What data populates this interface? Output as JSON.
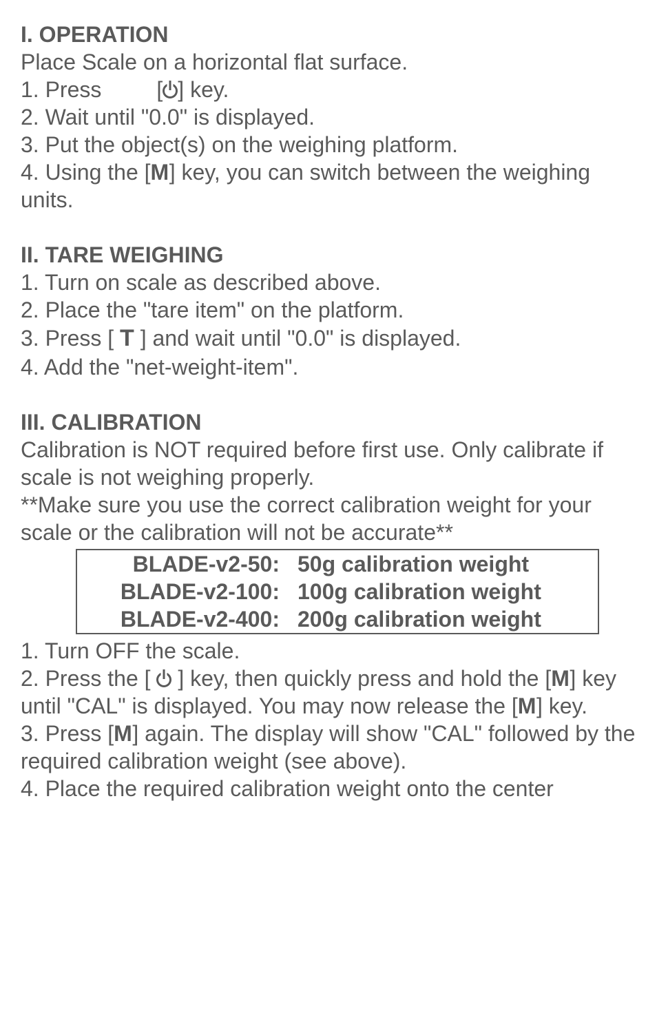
{
  "section1": {
    "heading": "I. OPERATION",
    "intro": "Place Scale on a horizontal flat surface.",
    "step1_a": "1. Press",
    "step1_b": "[",
    "step1_c": "] key.",
    "step2": "2. Wait until \"0.0\" is displayed.",
    "step3": "3. Put the object(s) on the weighing platform.",
    "step4_a": "4. Using the [",
    "step4_m": "M",
    "step4_b": "] key, you can switch between the weighing units."
  },
  "section2": {
    "heading": "II. TARE WEIGHING",
    "step1": "1. Turn on scale as described above.",
    "step2": "2. Place the \"tare item\" on the platform.",
    "step3_a": "3. Press [ ",
    "step3_t": "T",
    "step3_b": " ] and wait until \"0.0\" is displayed.",
    "step4": "4. Add the \"net-weight-item\"."
  },
  "section3": {
    "heading": "III. CALIBRATION",
    "intro1": "Calibration is NOT required before first use. Only calibrate if scale is not weighing properly.",
    "intro2": "**Make sure you use the correct calibration weight for your scale or the calibration will not be accurate**",
    "cal_table": [
      {
        "model": "BLADE-v2-50:",
        "weight": "50g calibration weight"
      },
      {
        "model": "BLADE-v2-100:",
        "weight": "100g calibration weight"
      },
      {
        "model": "BLADE-v2-400:",
        "weight": "200g calibration weight"
      }
    ],
    "step1": "1. Turn OFF the scale.",
    "step2_a": "2. Press the [ ",
    "step2_b": " ] key, then quickly press and hold the  [",
    "step2_m1": "M",
    "step2_c": "] key until \"CAL\"  is displayed. You may now release the [",
    "step2_m2": "M",
    "step2_d": "] key.",
    "step3_a": "3. Press [",
    "step3_m": "M",
    "step3_b": "] again. The display will show \"CAL\" followed by the required calibration weight (see above).",
    "step4": "4. Place the required calibration weight onto the center"
  }
}
